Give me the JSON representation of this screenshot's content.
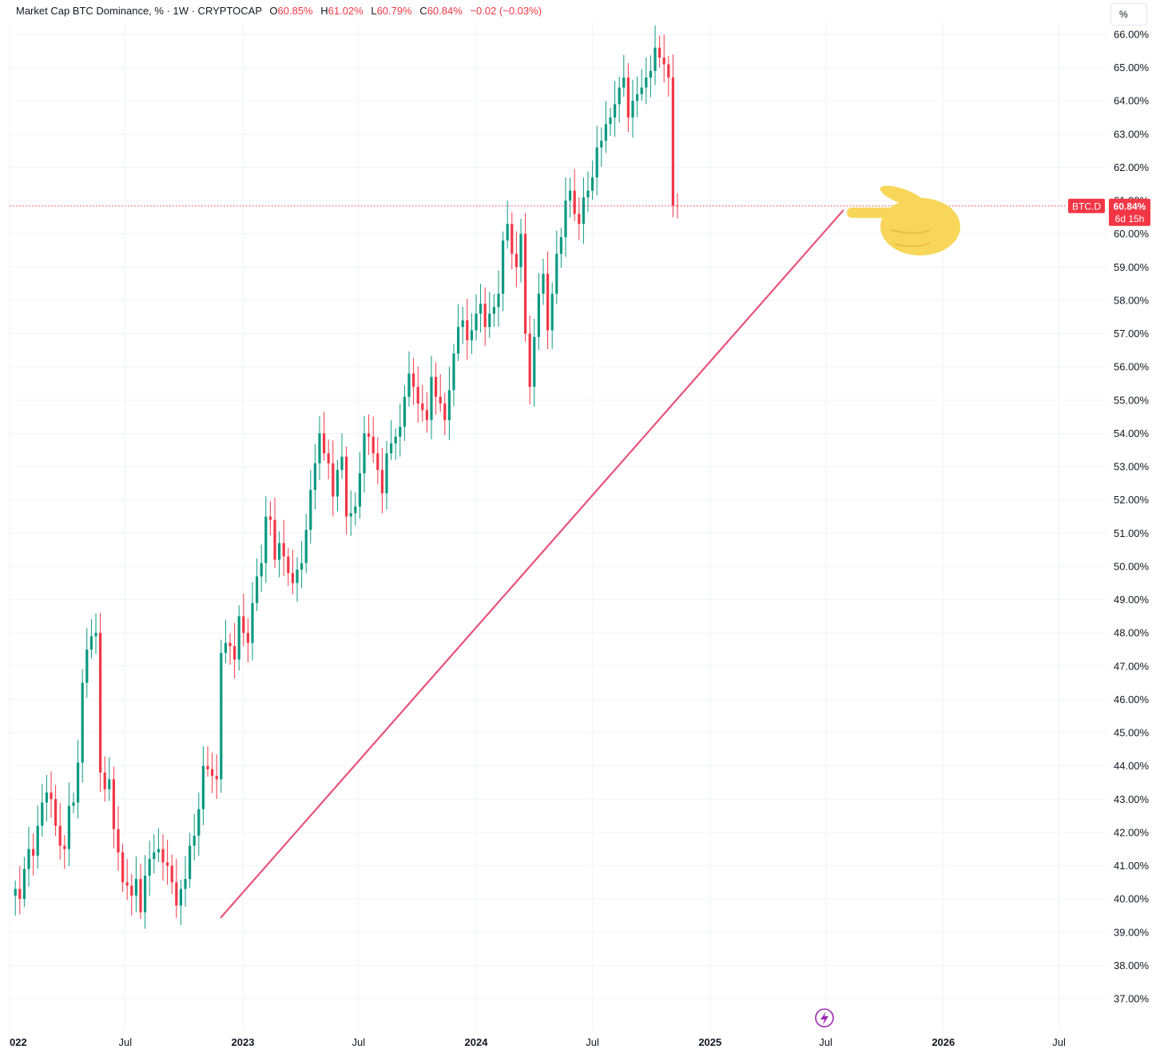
{
  "legend": {
    "title": "Market Cap BTC Dominance, % · 1W · CRYPTOCAP",
    "o_key": "O",
    "o_val": "60.85%",
    "h_key": "H",
    "h_val": "61.02%",
    "l_key": "L",
    "l_val": "60.79%",
    "c_key": "C",
    "c_val": "60.84%",
    "change": "−0.02 (−0.03%)"
  },
  "unit_button": "%",
  "price_badge": {
    "symbol": "BTC.D",
    "value": "60.84%",
    "countdown": "6d 15h"
  },
  "colors": {
    "up": "#089981",
    "down": "#f23645",
    "trendline": "#e8517a",
    "grid": "#f0f3fa",
    "hand": "#f7d65a",
    "flash": "#9c27b0"
  },
  "chart_data": {
    "type": "candlestick",
    "symbol": "BTC.D",
    "interval": "1W",
    "ylim": [
      36.5,
      66.5
    ],
    "y_ticks": [
      "37.00%",
      "38.00%",
      "39.00%",
      "40.00%",
      "41.00%",
      "42.00%",
      "43.00%",
      "44.00%",
      "45.00%",
      "46.00%",
      "47.00%",
      "48.00%",
      "49.00%",
      "50.00%",
      "51.00%",
      "52.00%",
      "53.00%",
      "54.00%",
      "55.00%",
      "56.00%",
      "57.00%",
      "58.00%",
      "59.00%",
      "60.00%",
      "61.00%",
      "62.00%",
      "63.00%",
      "64.00%",
      "65.00%",
      "66.00%"
    ],
    "x_ticks": [
      {
        "label": "022",
        "bold": true,
        "date": "2022-01-01"
      },
      {
        "label": "Jul",
        "bold": false,
        "date": "2022-07-01"
      },
      {
        "label": "2023",
        "bold": true,
        "date": "2023-01-01"
      },
      {
        "label": "Jul",
        "bold": false,
        "date": "2023-07-01"
      },
      {
        "label": "2024",
        "bold": true,
        "date": "2024-01-01"
      },
      {
        "label": "Jul",
        "bold": false,
        "date": "2024-07-01"
      },
      {
        "label": "2025",
        "bold": true,
        "date": "2025-01-01"
      },
      {
        "label": "Jul",
        "bold": false,
        "date": "2025-07-01"
      },
      {
        "label": "2026",
        "bold": true,
        "date": "2026-01-01"
      },
      {
        "label": "Jul",
        "bold": false,
        "date": "2026-07-01"
      }
    ],
    "series": [
      {
        "symbol": "BTC.D",
        "weekly_close": [
          40.3,
          40.0,
          40.9,
          41.5,
          41.3,
          42.2,
          42.9,
          43.2,
          43.0,
          42.2,
          41.6,
          41.5,
          42.8,
          42.9,
          44.1,
          46.5,
          47.5,
          47.9,
          48.0,
          43.8,
          43.3,
          43.6,
          42.1,
          41.4,
          40.5,
          40.4,
          40.1,
          40.6,
          39.6,
          40.7,
          41.2,
          41.4,
          41.5,
          41.1,
          41.0,
          40.5,
          39.8,
          40.3,
          40.6,
          41.6,
          41.9,
          42.7,
          44.0,
          43.9,
          43.7,
          43.6,
          47.4,
          47.7,
          47.6,
          47.2,
          48.5,
          48.0,
          47.7,
          48.9,
          49.7,
          50.1,
          51.5,
          51.4,
          50.2,
          50.7,
          50.3,
          49.8,
          49.5,
          49.9,
          50.1,
          51.1,
          52.3,
          53.1,
          54.0,
          53.4,
          53.1,
          52.1,
          52.9,
          53.3,
          51.5,
          51.6,
          51.8,
          52.8,
          54.0,
          53.9,
          53.4,
          52.9,
          52.2,
          53.4,
          53.7,
          53.9,
          54.2,
          55.1,
          55.8,
          55.4,
          54.9,
          54.7,
          54.4,
          55.7,
          55.1,
          54.9,
          54.4,
          55.3,
          56.4,
          57.2,
          57.4,
          56.8,
          57.1,
          57.6,
          57.9,
          57.2,
          57.6,
          57.8,
          58.2,
          59.8,
          60.3,
          59.4,
          59.0,
          60.0,
          57.0,
          55.4,
          56.9,
          58.2,
          58.8,
          57.1,
          58.2,
          59.4,
          59.9,
          61.0,
          61.3,
          60.6,
          60.3,
          61.1,
          61.3,
          61.7,
          62.6,
          62.8,
          63.3,
          63.5,
          63.9,
          64.4,
          64.7,
          63.5,
          64.0,
          64.2,
          64.4,
          64.7,
          64.9,
          65.6,
          65.3,
          65.1,
          64.7,
          60.85,
          60.84
        ]
      }
    ],
    "trendline": {
      "start": {
        "date": "2022-11-28",
        "value": 39.45
      },
      "end": {
        "date": "2025-07-28",
        "value": 60.7
      }
    },
    "current_price_line": 60.84,
    "annotation": "pointing-hand-emoji at current price line"
  }
}
